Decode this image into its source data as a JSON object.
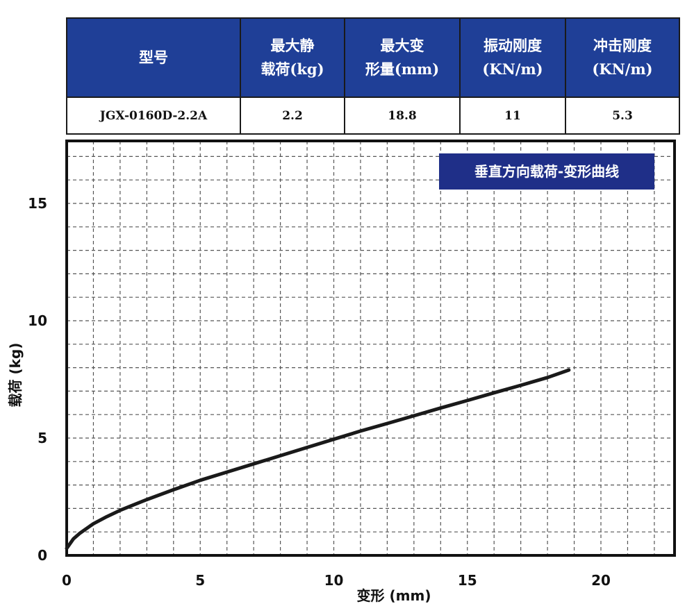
{
  "spec_table": {
    "headers": [
      "型号",
      "最大静\n载荷(kg)",
      "最大变\n形量(mm)",
      "振动刚度\n(KN/m)",
      "冲击刚度\n(KN/m)"
    ],
    "row": [
      "JGX-0160D-2.2A",
      "2.2",
      "18.8",
      "11",
      "5.3"
    ]
  },
  "chart_data": {
    "type": "line",
    "title": "垂直方向载荷-变形曲线",
    "xlabel": "变形 (mm)",
    "ylabel": "载荷 (kg)",
    "xlim": [
      0,
      23
    ],
    "ylim": [
      0,
      18
    ],
    "x_ticks": [
      0,
      5,
      10,
      15,
      20
    ],
    "y_ticks": [
      0,
      5,
      10,
      15
    ],
    "grid": true,
    "series": [
      {
        "x": [
          0,
          0.25,
          0.5,
          1,
          1.5,
          2,
          2.5,
          3,
          4,
          5,
          6,
          7,
          8,
          9,
          10,
          11,
          12,
          13,
          14,
          15,
          16,
          17,
          18,
          18.8
        ],
        "values": [
          0.3,
          0.7,
          0.95,
          1.35,
          1.65,
          1.92,
          2.15,
          2.38,
          2.8,
          3.2,
          3.55,
          3.9,
          4.25,
          4.6,
          4.95,
          5.3,
          5.62,
          5.95,
          6.28,
          6.6,
          6.93,
          7.25,
          7.58,
          7.9
        ]
      }
    ],
    "colors": {
      "line": "#1a1a1a",
      "title_bg": "#1f2f88",
      "header_bg": "#1f3f97"
    }
  }
}
